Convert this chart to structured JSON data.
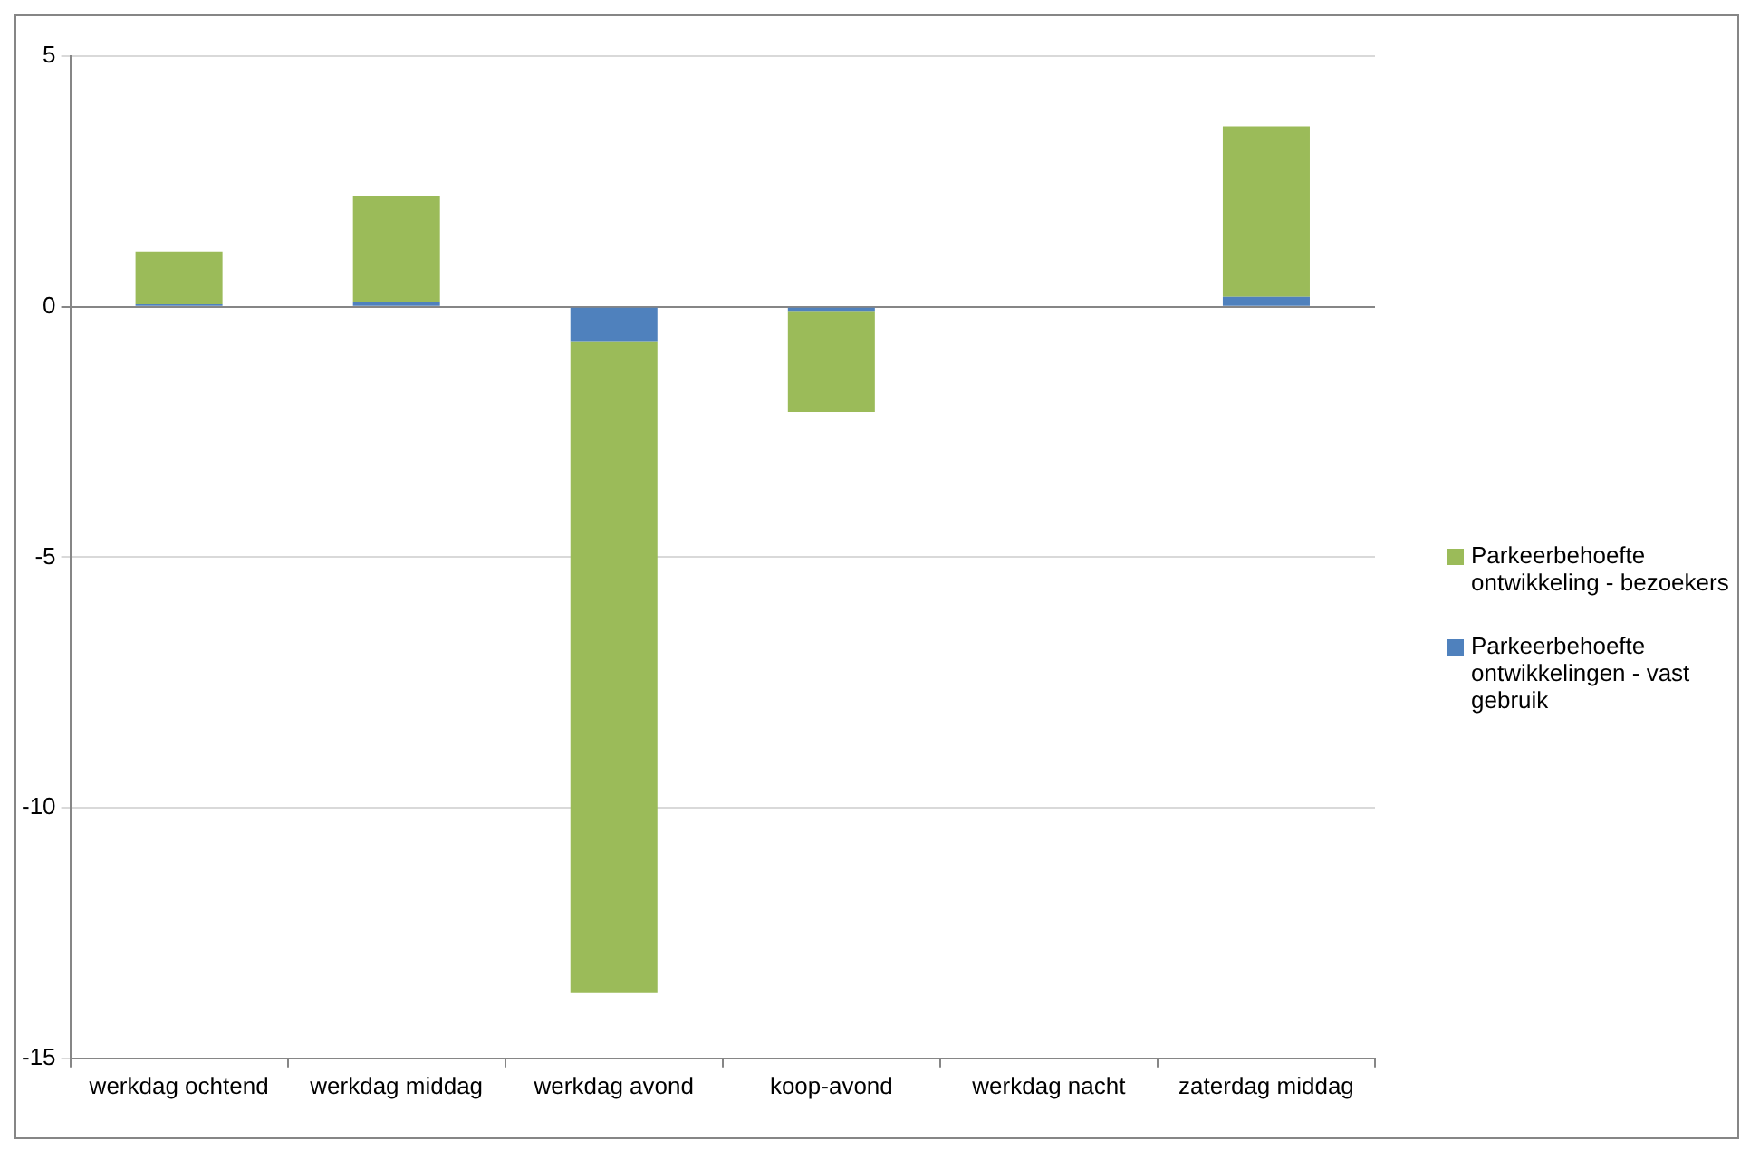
{
  "chart_data": {
    "type": "bar",
    "stacked": true,
    "categories": [
      "werkdag ochtend",
      "werkdag middag",
      "werkdag avond",
      "koop-avond",
      "werkdag nacht",
      "zaterdag middag"
    ],
    "series": [
      {
        "name": "Parkeerbehoefte ontwikkelingen - vast gebruik",
        "color": "#4f81bd",
        "values": [
          0.05,
          0.1,
          -0.7,
          -0.1,
          0,
          0.2
        ]
      },
      {
        "name": "Parkeerbehoefte ontwikkeling - bezoekers",
        "color": "#9bbb59",
        "values": [
          1.05,
          2.1,
          -13.0,
          -2.0,
          0,
          3.4
        ]
      }
    ],
    "ylim": [
      -15,
      5
    ],
    "yticks": [
      -15,
      -10,
      -5,
      0,
      5
    ],
    "grid": "y",
    "legend": "right"
  }
}
